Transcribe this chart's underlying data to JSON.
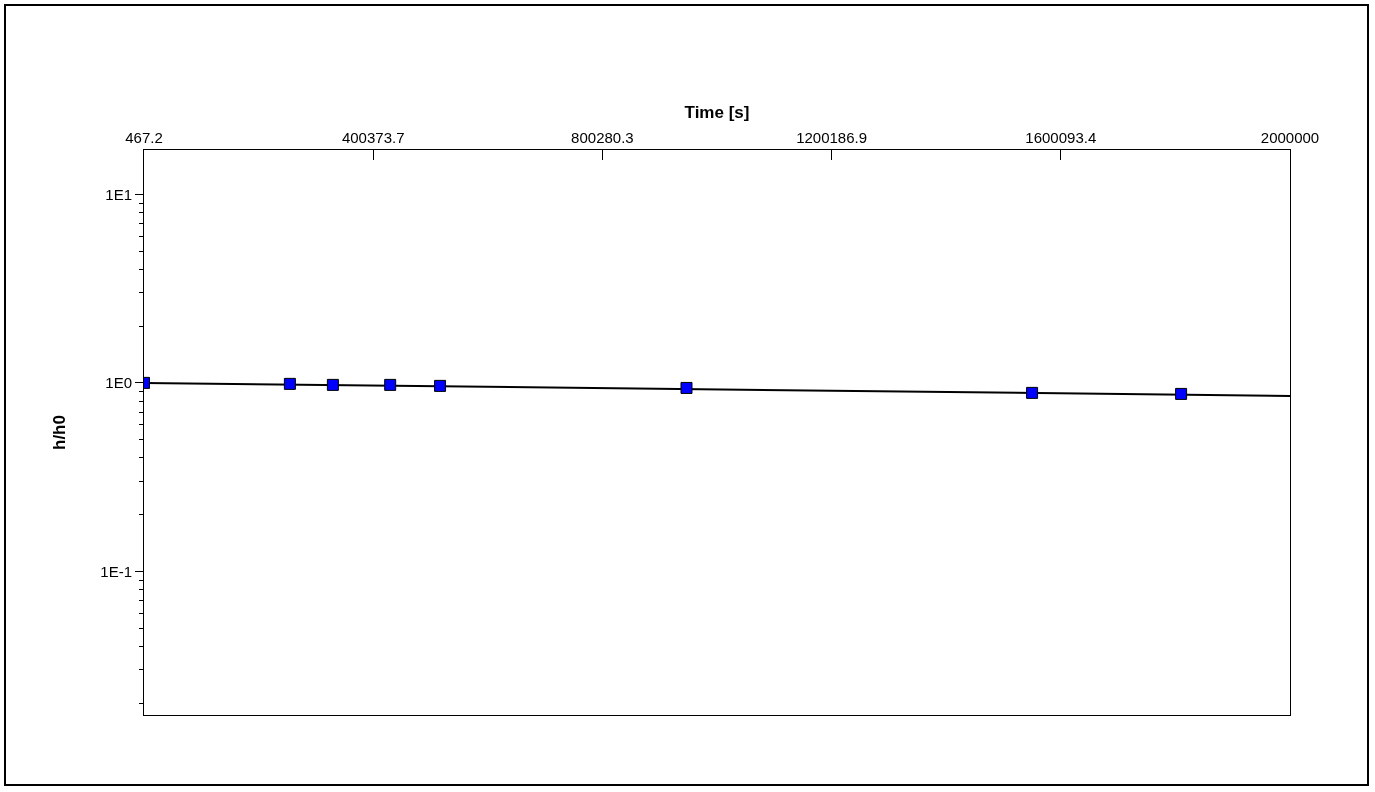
{
  "chart_data": {
    "type": "scatter",
    "xlabel": "Time [s]",
    "ylabel": "h/h0",
    "xlim": [
      467.2,
      2000000
    ],
    "xticks": [
      467.2,
      400373.7,
      800280.3,
      1200186.9,
      1600093.4,
      2000000
    ],
    "ylim": [
      0.0173,
      17.2
    ],
    "yticks": [
      {
        "value": 10,
        "label": "1E1"
      },
      {
        "value": 1,
        "label": "1E0"
      },
      {
        "value": 0.1,
        "label": "1E-1"
      }
    ],
    "log": "y",
    "grid": false,
    "series": [
      {
        "marker": "square",
        "color": "#0000ff",
        "x": [
          467.2,
          255000,
          330000,
          430000,
          517000,
          947000,
          1550000,
          1810000
        ],
        "values": [
          1.0,
          0.988,
          0.976,
          0.976,
          0.964,
          0.94,
          0.885,
          0.874
        ]
      },
      {
        "type": "line",
        "marker": "none",
        "color": "#000000",
        "line_style": "solid",
        "x": [
          467.2,
          2000000
        ],
        "values": [
          1.0,
          0.853
        ]
      }
    ]
  }
}
